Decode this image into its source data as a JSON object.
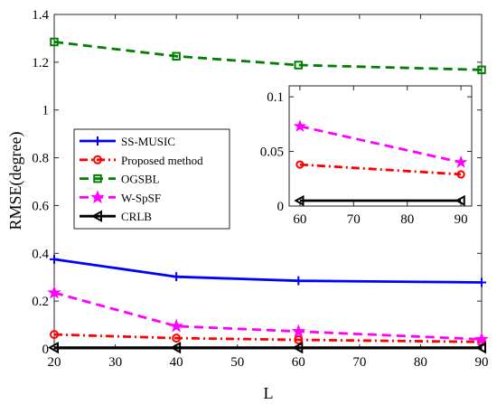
{
  "chart_data": [
    {
      "type": "line",
      "xlabel": "L",
      "ylabel": "RMSE(degree)",
      "xlim": [
        20,
        90
      ],
      "ylim": [
        0,
        1.4
      ],
      "xticks": [
        "20",
        "30",
        "40",
        "50",
        "60",
        "70",
        "80",
        "90"
      ],
      "yticks": [
        "0",
        "0.2",
        "0.4",
        "0.6",
        "0.8",
        "1",
        "1.2",
        "1.4"
      ],
      "grid": false,
      "legend_position": "center-left",
      "x": [
        20,
        40,
        60,
        90
      ],
      "series": [
        {
          "name": "SS-MUSIC",
          "color": "#0000ff",
          "line": "solid",
          "marker": "plus",
          "values": [
            0.375,
            0.302,
            0.285,
            0.278
          ]
        },
        {
          "name": "Proposed method",
          "color": "#ff0000",
          "line": "dashdot",
          "marker": "circle",
          "values": [
            0.06,
            0.045,
            0.038,
            0.029
          ]
        },
        {
          "name": "OGSBL",
          "color": "#008000",
          "line": "dashed",
          "marker": "square",
          "values": [
            1.285,
            1.225,
            1.188,
            1.168
          ]
        },
        {
          "name": "W-SpSF",
          "color": "#ff00ff",
          "line": "dashed",
          "marker": "star",
          "values": [
            0.235,
            0.095,
            0.073,
            0.04
          ]
        },
        {
          "name": "CRLB",
          "color": "#000000",
          "line": "solid",
          "marker": "left-triangle",
          "values": [
            0.005,
            0.005,
            0.005,
            0.005
          ]
        }
      ]
    },
    {
      "type": "line",
      "inset": true,
      "xlim": [
        58,
        92
      ],
      "ylim": [
        0,
        0.11
      ],
      "xticks": [
        "60",
        "70",
        "80",
        "90"
      ],
      "yticks": [
        "0",
        "0.05",
        "0.1"
      ],
      "grid": false,
      "x": [
        60,
        90
      ],
      "series": [
        {
          "color": "#ff00ff",
          "line": "dashed",
          "marker": "star",
          "values": [
            0.073,
            0.04
          ]
        },
        {
          "color": "#ff0000",
          "line": "dashdot",
          "marker": "circle",
          "values": [
            0.038,
            0.029
          ]
        },
        {
          "color": "#000000",
          "line": "solid",
          "marker": "left-triangle",
          "values": [
            0.005,
            0.005
          ]
        }
      ]
    }
  ]
}
